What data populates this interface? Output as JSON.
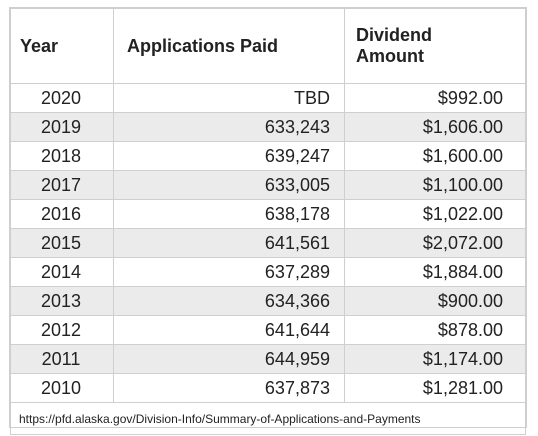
{
  "table": {
    "headers": {
      "year": "Year",
      "applications": "Applications Paid",
      "dividend_line1": "Dividend",
      "dividend_line2": "Amount"
    },
    "rows": [
      {
        "year": "2020",
        "applications": "TBD",
        "amount": "$992.00"
      },
      {
        "year": "2019",
        "applications": "633,243",
        "amount": "$1,606.00"
      },
      {
        "year": "2018",
        "applications": "639,247",
        "amount": "$1,600.00"
      },
      {
        "year": "2017",
        "applications": "633,005",
        "amount": "$1,100.00"
      },
      {
        "year": "2016",
        "applications": "638,178",
        "amount": "$1,022.00"
      },
      {
        "year": "2015",
        "applications": "641,561",
        "amount": "$2,072.00"
      },
      {
        "year": "2014",
        "applications": "637,289",
        "amount": "$1,884.00"
      },
      {
        "year": "2013",
        "applications": "634,366",
        "amount": "$900.00"
      },
      {
        "year": "2012",
        "applications": "641,644",
        "amount": "$878.00"
      },
      {
        "year": "2011",
        "applications": "644,959",
        "amount": "$1,174.00"
      },
      {
        "year": "2010",
        "applications": "637,873",
        "amount": "$1,281.00"
      }
    ],
    "source": "https://pfd.alaska.gov/Division-Info/Summary-of-Applications-and-Payments"
  },
  "colors": {
    "stripe": "#ebebeb",
    "border": "#cfcfcf",
    "text": "#222222"
  }
}
